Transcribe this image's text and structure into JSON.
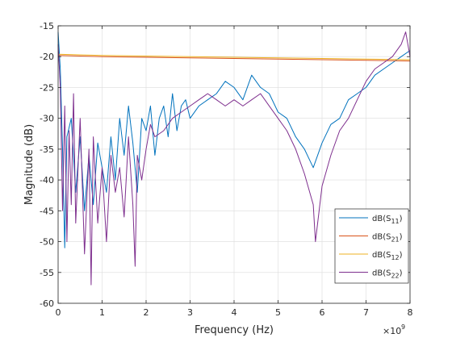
{
  "chart_data": {
    "type": "line",
    "xlabel": "Frequency (Hz)",
    "ylabel": "Magnitude (dB)",
    "x_exponent_base": "×10",
    "x_exponent_power": "9",
    "xlim": [
      0,
      8
    ],
    "ylim": [
      -60,
      -15
    ],
    "xticks": [
      0,
      1,
      2,
      3,
      4,
      5,
      6,
      7,
      8
    ],
    "yticks": [
      -15,
      -20,
      -25,
      -30,
      -35,
      -40,
      -45,
      -50,
      -55,
      -60
    ],
    "grid": true,
    "legend_position": "bottom-right",
    "series": [
      {
        "key": "s11",
        "label_prefix": "dB(S",
        "label_sub": "11",
        "label_suffix": ")",
        "color": "#0072BD",
        "x": [
          0,
          0.05,
          0.1,
          0.15,
          0.2,
          0.3,
          0.4,
          0.5,
          0.6,
          0.7,
          0.8,
          0.9,
          1.0,
          1.1,
          1.2,
          1.3,
          1.4,
          1.5,
          1.6,
          1.7,
          1.8,
          1.9,
          2.0,
          2.1,
          2.2,
          2.3,
          2.4,
          2.5,
          2.6,
          2.7,
          2.8,
          2.9,
          3.0,
          3.2,
          3.4,
          3.6,
          3.8,
          4.0,
          4.2,
          4.4,
          4.6,
          4.8,
          5.0,
          5.2,
          5.4,
          5.6,
          5.8,
          6.0,
          6.2,
          6.4,
          6.6,
          6.8,
          7.0,
          7.2,
          7.4,
          7.6,
          7.8,
          8.0
        ],
        "y": [
          -16,
          -22,
          -35,
          -51,
          -33,
          -30,
          -42,
          -33,
          -45,
          -36,
          -44,
          -34,
          -38,
          -42,
          -33,
          -40,
          -30,
          -36,
          -28,
          -34,
          -42,
          -30,
          -32,
          -28,
          -36,
          -30,
          -28,
          -33,
          -26,
          -32,
          -28,
          -27,
          -30,
          -28,
          -27,
          -26,
          -24,
          -25,
          -27,
          -23,
          -25,
          -26,
          -29,
          -30,
          -33,
          -35,
          -38,
          -34,
          -31,
          -30,
          -27,
          -26,
          -25,
          -23,
          -22,
          -21,
          -20,
          -19
        ]
      },
      {
        "key": "s21",
        "label_prefix": "dB(S",
        "label_sub": "21",
        "label_suffix": ")",
        "color": "#D95319",
        "x": [
          0,
          1,
          2,
          3,
          4,
          5,
          6,
          7,
          8
        ],
        "y": [
          -19.8,
          -20.0,
          -20.1,
          -20.2,
          -20.3,
          -20.4,
          -20.5,
          -20.6,
          -20.7
        ]
      },
      {
        "key": "s12",
        "label_prefix": "dB(S",
        "label_sub": "12",
        "label_suffix": ")",
        "color": "#EDB120",
        "x": [
          0,
          1,
          2,
          3,
          4,
          5,
          6,
          7,
          8
        ],
        "y": [
          -19.6,
          -19.8,
          -19.9,
          -20.0,
          -20.1,
          -20.2,
          -20.3,
          -20.4,
          -20.5
        ]
      },
      {
        "key": "s22",
        "label_prefix": "dB(S",
        "label_sub": "22",
        "label_suffix": ")",
        "color": "#7E2F8E",
        "x": [
          0,
          0.05,
          0.1,
          0.15,
          0.2,
          0.25,
          0.3,
          0.35,
          0.4,
          0.5,
          0.6,
          0.7,
          0.75,
          0.8,
          0.9,
          1.0,
          1.1,
          1.2,
          1.3,
          1.4,
          1.5,
          1.6,
          1.7,
          1.75,
          1.8,
          1.9,
          2.0,
          2.1,
          2.2,
          2.4,
          2.6,
          2.8,
          3.0,
          3.2,
          3.4,
          3.6,
          3.8,
          4.0,
          4.2,
          4.4,
          4.6,
          4.8,
          5.0,
          5.2,
          5.4,
          5.6,
          5.8,
          5.85,
          6.0,
          6.2,
          6.4,
          6.6,
          6.8,
          7.0,
          7.2,
          7.4,
          7.6,
          7.8,
          7.9,
          8.0
        ],
        "y": [
          -18,
          -25,
          -45,
          -28,
          -50,
          -32,
          -44,
          -26,
          -47,
          -30,
          -52,
          -35,
          -57,
          -33,
          -47,
          -38,
          -50,
          -36,
          -42,
          -38,
          -46,
          -33,
          -44,
          -54,
          -36,
          -40,
          -35,
          -31,
          -33,
          -32,
          -30,
          -29,
          -28,
          -27,
          -26,
          -27,
          -28,
          -27,
          -28,
          -27,
          -26,
          -28,
          -30,
          -32,
          -35,
          -39,
          -44,
          -50,
          -41,
          -36,
          -32,
          -30,
          -27,
          -24,
          -22,
          -21,
          -20,
          -18,
          -16,
          -20
        ]
      }
    ]
  }
}
